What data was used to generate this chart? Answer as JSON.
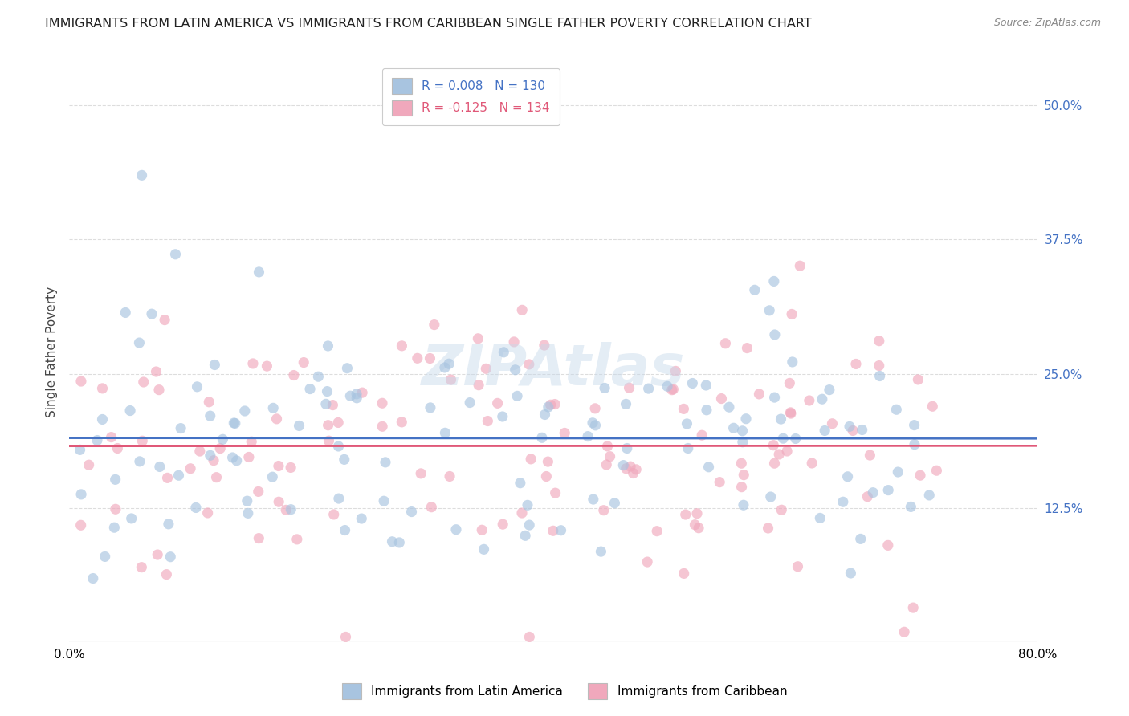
{
  "title": "IMMIGRANTS FROM LATIN AMERICA VS IMMIGRANTS FROM CARIBBEAN SINGLE FATHER POVERTY CORRELATION CHART",
  "source": "Source: ZipAtlas.com",
  "ylabel": "Single Father Poverty",
  "yticks": [
    "12.5%",
    "25.0%",
    "37.5%",
    "50.0%"
  ],
  "ytick_vals": [
    0.125,
    0.25,
    0.375,
    0.5
  ],
  "xlim": [
    0.0,
    0.8
  ],
  "ylim": [
    0.0,
    0.54
  ],
  "series1_R": 0.008,
  "series1_N": 130,
  "series2_R": -0.125,
  "series2_N": 134,
  "dot_color1": "#a8c4e0",
  "dot_color2": "#f0a8bc",
  "line_color1": "#4472c4",
  "line_color2": "#e05878",
  "watermark": "ZIPAtlas",
  "title_fontsize": 11.5,
  "source_fontsize": 9,
  "axis_label_fontsize": 10,
  "legend_fontsize": 11,
  "dot_size": 90,
  "dot_alpha": 0.65,
  "background_color": "#ffffff",
  "grid_color": "#dddddd",
  "seed1": 42,
  "seed2": 99,
  "legend_R1": "R = 0.008",
  "legend_N1": "N = 130",
  "legend_R2": "R = -0.125",
  "legend_N2": "N = 134",
  "legend_label1": "Immigrants from Latin America",
  "legend_label2": "Immigrants from Caribbean",
  "trend_y_intercept1": 0.183,
  "trend_slope1": 0.004,
  "trend_y_intercept2": 0.205,
  "trend_slope2": -0.042
}
